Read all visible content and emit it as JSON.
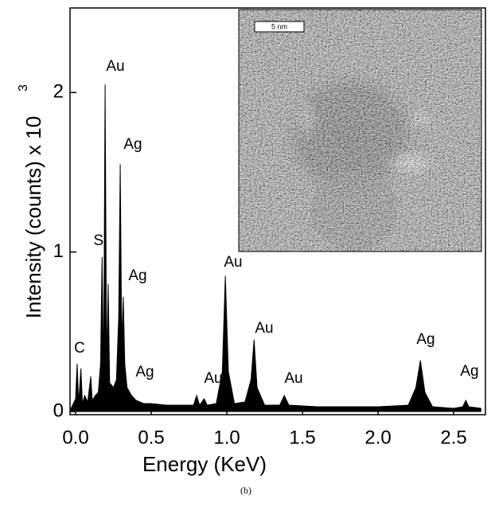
{
  "chart_data": {
    "type": "area",
    "xlabel": "Energy (KeV)",
    "ylabel": "Intensity (counts) x 10",
    "ylabel_superscript": "3",
    "caption": "(b)",
    "inset_scale_label": "5 nm",
    "color": "#000000",
    "x": [
      -0.03,
      0.0,
      0.01,
      0.02,
      0.035,
      0.045,
      0.06,
      0.08,
      0.1,
      0.11,
      0.13,
      0.15,
      0.165,
      0.175,
      0.185,
      0.195,
      0.205,
      0.215,
      0.225,
      0.25,
      0.27,
      0.285,
      0.295,
      0.305,
      0.315,
      0.325,
      0.34,
      0.37,
      0.4,
      0.45,
      0.5,
      0.6,
      0.7,
      0.78,
      0.8,
      0.82,
      0.85,
      0.87,
      0.93,
      0.97,
      0.99,
      1.01,
      1.05,
      1.12,
      1.16,
      1.18,
      1.2,
      1.25,
      1.35,
      1.38,
      1.41,
      1.6,
      1.8,
      2.0,
      2.2,
      2.25,
      2.28,
      2.31,
      2.36,
      2.5,
      2.56,
      2.58,
      2.6,
      2.68
    ],
    "values": [
      0.02,
      0.08,
      0.3,
      0.05,
      0.27,
      0.05,
      0.1,
      0.06,
      0.22,
      0.07,
      0.1,
      0.12,
      0.3,
      0.97,
      0.2,
      2.05,
      0.25,
      0.8,
      0.18,
      0.15,
      0.2,
      0.6,
      1.55,
      0.4,
      0.72,
      0.3,
      0.15,
      0.1,
      0.07,
      0.05,
      0.05,
      0.04,
      0.04,
      0.04,
      0.1,
      0.04,
      0.08,
      0.04,
      0.05,
      0.25,
      0.85,
      0.25,
      0.05,
      0.06,
      0.2,
      0.45,
      0.15,
      0.04,
      0.04,
      0.1,
      0.04,
      0.03,
      0.03,
      0.03,
      0.04,
      0.15,
      0.32,
      0.12,
      0.03,
      0.02,
      0.03,
      0.07,
      0.03,
      0.02
    ],
    "annotations": [
      "C",
      "Si",
      "Au",
      "Ag",
      "Ag",
      "Ag",
      "Au",
      "Au",
      "Au",
      "Au",
      "Ag",
      "Ag"
    ],
    "xlim": [
      -0.037,
      2.71
    ],
    "ylim": [
      -0.02,
      2.53
    ],
    "xticks": [
      {
        "value": 0,
        "label": "0.0"
      },
      0.5,
      {
        "value": 1,
        "label": "1.0"
      },
      1.5,
      {
        "value": 2,
        "label": "2.0"
      },
      2.5
    ],
    "yticks": [
      0,
      1,
      2
    ]
  }
}
